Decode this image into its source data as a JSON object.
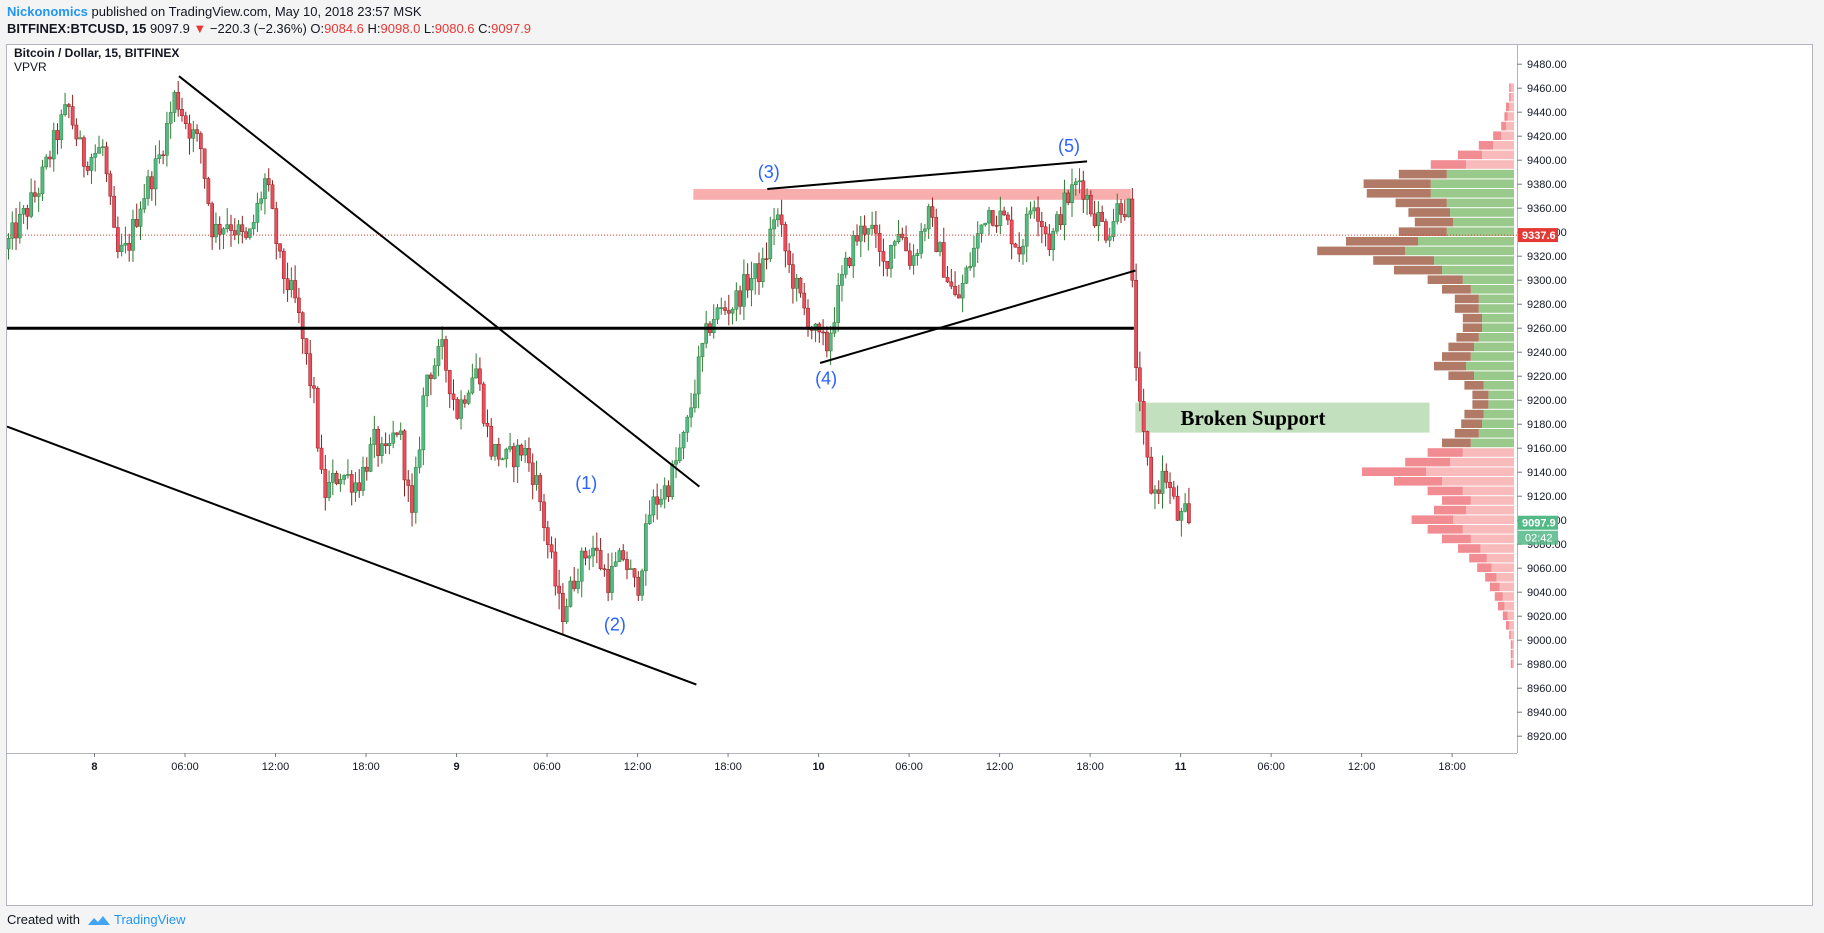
{
  "header": {
    "author": "Nickonomics",
    "published_text": " published on TradingView.com, May 10, 2018 23:57 MSK",
    "symbol": "BITFINEX:BTCUSD, 15",
    "price": "9097.9",
    "change_arrow": "▼",
    "change": "−220.3 (−2.36%)",
    "o_label": "O:",
    "o_value": "9084.6",
    "h_label": "H:",
    "h_value": "9098.0",
    "l_label": "L:",
    "l_value": "9080.6",
    "c_label": "C:",
    "c_value": "9097.9"
  },
  "legend": {
    "title": "Bitcoin / Dollar, 15, BITFINEX",
    "indicator": "VPVR"
  },
  "footer": {
    "created_with": "Created with",
    "brand": "TradingView"
  },
  "colors": {
    "up": "#53b987",
    "down": "#eb4d5c",
    "up_wick": "#2e7d32",
    "down_wick": "#8e1e1e",
    "label_blue": "#2962ff",
    "resistance_zone": "#f8a5a5",
    "support_zone": "#b7dbb2",
    "last_price_bg": "#e53935",
    "current_price_bg": "#53b987"
  },
  "chart_data": {
    "type": "candlestick",
    "title": "Bitcoin / Dollar, 15, BITFINEX",
    "y_ticks": [
      8920,
      8940,
      8960,
      8980,
      9000,
      9020,
      9040,
      9060,
      9080,
      9100,
      9120,
      9140,
      9160,
      9180,
      9200,
      9220,
      9240,
      9260,
      9280,
      9300,
      9320,
      9340,
      9360,
      9380,
      9400,
      9420,
      9440,
      9460,
      9480
    ],
    "x_ticks": [
      "8",
      "06:00",
      "12:00",
      "18:00",
      "9",
      "06:00",
      "12:00",
      "18:00",
      "10",
      "06:00",
      "12:00",
      "18:00",
      "11",
      "06:00",
      "12:00",
      "18:00"
    ],
    "x_tick_hours": [
      0,
      6,
      12,
      18,
      24,
      30,
      36,
      42,
      48,
      54,
      60,
      66,
      72,
      78,
      84,
      90
    ],
    "x_range_hours": [
      -5.8,
      94.3
    ],
    "y_range": [
      8906,
      9496
    ],
    "last_price_label": "9337.6",
    "current_price_label": "9097.9",
    "countdown_label": "02:42",
    "grid": false,
    "price_anchors": [
      [
        -5.7,
        9326
      ],
      [
        -4.6,
        9350
      ],
      [
        -3.5,
        9375
      ],
      [
        -2.3,
        9420
      ],
      [
        -1.5,
        9445
      ],
      [
        -0.5,
        9400
      ],
      [
        0.8,
        9410
      ],
      [
        1.7,
        9320
      ],
      [
        2.4,
        9325
      ],
      [
        3.3,
        9365
      ],
      [
        4.5,
        9400
      ],
      [
        5.6,
        9455
      ],
      [
        6.4,
        9430
      ],
      [
        7.3,
        9410
      ],
      [
        8.1,
        9340
      ],
      [
        9.1,
        9350
      ],
      [
        10.4,
        9330
      ],
      [
        11.6,
        9385
      ],
      [
        12.6,
        9310
      ],
      [
        13.6,
        9280
      ],
      [
        14.8,
        9200
      ],
      [
        15.4,
        9120
      ],
      [
        16.5,
        9140
      ],
      [
        17.7,
        9130
      ],
      [
        18.8,
        9165
      ],
      [
        19.5,
        9150
      ],
      [
        20.4,
        9180
      ],
      [
        21.3,
        9100
      ],
      [
        22.2,
        9220
      ],
      [
        23.3,
        9240
      ],
      [
        24.3,
        9190
      ],
      [
        25.5,
        9230
      ],
      [
        26.5,
        9160
      ],
      [
        27.6,
        9150
      ],
      [
        28.7,
        9160
      ],
      [
        29.6,
        9130
      ],
      [
        30.3,
        9080
      ],
      [
        31.2,
        9020
      ],
      [
        32.3,
        9060
      ],
      [
        33.2,
        9080
      ],
      [
        34.3,
        9050
      ],
      [
        35.3,
        9070
      ],
      [
        36.2,
        9040
      ],
      [
        37.1,
        9110
      ],
      [
        38.3,
        9130
      ],
      [
        39.4,
        9170
      ],
      [
        40.5,
        9240
      ],
      [
        41.2,
        9270
      ],
      [
        42.6,
        9280
      ],
      [
        43.6,
        9300
      ],
      [
        44.6,
        9310
      ],
      [
        45.4,
        9360
      ],
      [
        46.3,
        9310
      ],
      [
        47.3,
        9275
      ],
      [
        48.2,
        9250
      ],
      [
        48.8,
        9245
      ],
      [
        49.6,
        9290
      ],
      [
        50.5,
        9330
      ],
      [
        51.6,
        9350
      ],
      [
        52.5,
        9310
      ],
      [
        53.5,
        9345
      ],
      [
        54.4,
        9315
      ],
      [
        55.5,
        9355
      ],
      [
        56.6,
        9310
      ],
      [
        57.4,
        9280
      ],
      [
        58.3,
        9315
      ],
      [
        59.4,
        9360
      ],
      [
        60.6,
        9350
      ],
      [
        61.6,
        9325
      ],
      [
        62.5,
        9370
      ],
      [
        63.6,
        9330
      ],
      [
        64.4,
        9360
      ],
      [
        65.6,
        9385
      ],
      [
        66.3,
        9360
      ],
      [
        67.4,
        9340
      ],
      [
        68.2,
        9365
      ],
      [
        68.8,
        9360
      ],
      [
        69.2,
        9250
      ],
      [
        69.6,
        9180
      ],
      [
        70.4,
        9120
      ],
      [
        71.2,
        9140
      ],
      [
        72.1,
        9100
      ],
      [
        72.7,
        9105
      ]
    ],
    "vpvr": {
      "sell_color": "#a86b57",
      "buy_color": "#8fc47e",
      "rows_from_9460_to_8980_step_8": [
        [
          1,
          2
        ],
        [
          1,
          2
        ],
        [
          2,
          3
        ],
        [
          2,
          4
        ],
        [
          3,
          5
        ],
        [
          5,
          8
        ],
        [
          9,
          13
        ],
        [
          15,
          20
        ],
        [
          22,
          30
        ],
        [
          30,
          42
        ],
        [
          42,
          52
        ],
        [
          40,
          52
        ],
        [
          32,
          42
        ],
        [
          26,
          40
        ],
        [
          24,
          38
        ],
        [
          30,
          42
        ],
        [
          45,
          60
        ],
        [
          55,
          68
        ],
        [
          38,
          50
        ],
        [
          30,
          45
        ],
        [
          22,
          32
        ],
        [
          18,
          27
        ],
        [
          15,
          22
        ],
        [
          15,
          22
        ],
        [
          12,
          20
        ],
        [
          12,
          20
        ],
        [
          14,
          22
        ],
        [
          16,
          25
        ],
        [
          18,
          27
        ],
        [
          20,
          30
        ],
        [
          16,
          25
        ],
        [
          12,
          19
        ],
        [
          10,
          16
        ],
        [
          10,
          16
        ],
        [
          12,
          19
        ],
        [
          13,
          20
        ],
        [
          15,
          22
        ],
        [
          18,
          27
        ],
        [
          22,
          32
        ],
        [
          28,
          40
        ],
        [
          40,
          55
        ],
        [
          30,
          45
        ],
        [
          22,
          32
        ],
        [
          18,
          27
        ],
        [
          20,
          30
        ],
        [
          26,
          38
        ],
        [
          22,
          32
        ],
        [
          18,
          27
        ],
        [
          14,
          21
        ],
        [
          11,
          17
        ],
        [
          9,
          14
        ],
        [
          7,
          11
        ],
        [
          6,
          9
        ],
        [
          5,
          7
        ],
        [
          4,
          6
        ],
        [
          3,
          4
        ],
        [
          2,
          3
        ],
        [
          1,
          2
        ],
        [
          1,
          1
        ],
        [
          1,
          1
        ],
        [
          1,
          1
        ]
      ]
    },
    "annotations": [
      {
        "type": "label",
        "text": "(1)",
        "hour": 32.6,
        "price": 9126
      },
      {
        "type": "label",
        "text": "(2)",
        "hour": 34.5,
        "price": 9008
      },
      {
        "type": "label",
        "text": "(3)",
        "hour": 44.7,
        "price": 9385
      },
      {
        "type": "label",
        "text": "(4)",
        "hour": 48.5,
        "price": 9213
      },
      {
        "type": "label",
        "text": "(5)",
        "hour": 64.6,
        "price": 9407
      },
      {
        "type": "zone_label",
        "text": "Broken Support",
        "hour": 76.8,
        "price": 9185
      }
    ],
    "trendlines": [
      {
        "name": "descending-resistance",
        "from": [
          5.6,
          9470
        ],
        "to": [
          40.1,
          9128
        ]
      },
      {
        "name": "wedge-lower",
        "from": [
          -5.8,
          9178
        ],
        "to": [
          39.9,
          8963
        ]
      },
      {
        "name": "horizontal-support",
        "from": [
          -5.8,
          9260
        ],
        "to": [
          68.9,
          9260
        ]
      },
      {
        "name": "wedge-top",
        "from": [
          44.6,
          9376
        ],
        "to": [
          65.8,
          9399
        ]
      },
      {
        "name": "wedge-bottom",
        "from": [
          48.1,
          9231
        ],
        "to": [
          69.0,
          9308
        ]
      }
    ],
    "zones": [
      {
        "name": "resistance-zone",
        "from_hour": 39.7,
        "to_hour": 68.7,
        "top": 9376,
        "bottom": 9367
      },
      {
        "name": "broken-support-zone",
        "from_hour": 69.0,
        "to_hour": 88.5,
        "top": 9198,
        "bottom": 9173
      }
    ]
  }
}
